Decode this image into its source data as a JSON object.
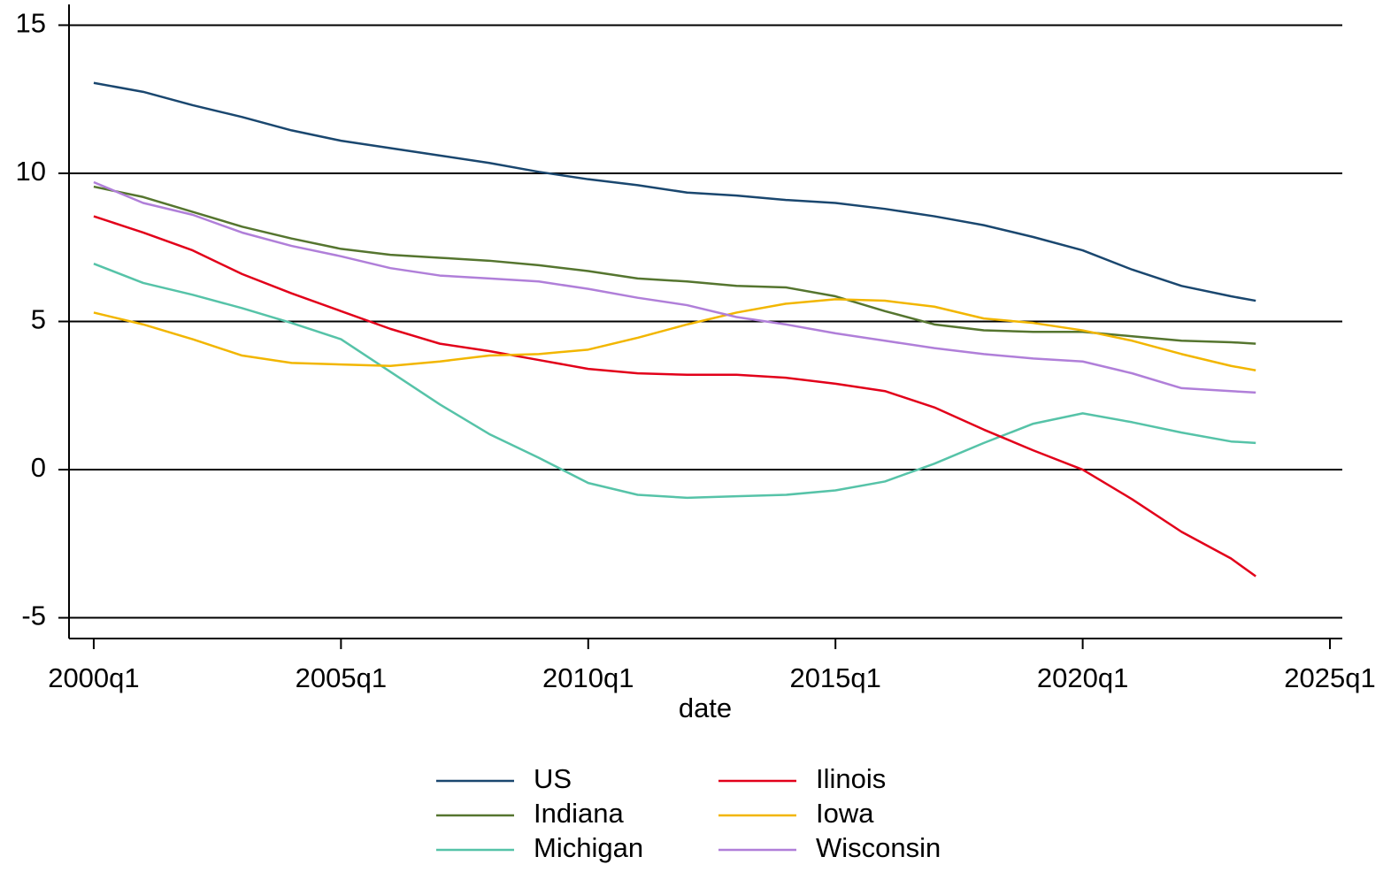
{
  "chart_data": {
    "type": "line",
    "x": [
      "2000q1",
      "2001q1",
      "2002q1",
      "2003q1",
      "2004q1",
      "2005q1",
      "2006q1",
      "2007q1",
      "2008q1",
      "2009q1",
      "2010q1",
      "2011q1",
      "2012q1",
      "2013q1",
      "2014q1",
      "2015q1",
      "2016q1",
      "2017q1",
      "2018q1",
      "2019q1",
      "2020q1",
      "2021q1",
      "2022q1",
      "2023q1",
      "2023q3"
    ],
    "xlabel": "date",
    "xlim": [
      "1999q3",
      "2025q2"
    ],
    "xticks": [
      "2000q1",
      "2005q1",
      "2010q1",
      "2015q1",
      "2020q1",
      "2025q1"
    ],
    "ylim": [
      -5.7,
      15.7
    ],
    "yticks": [
      -5,
      0,
      5,
      10,
      15
    ],
    "grid": true,
    "legend_columns": 2,
    "series": [
      {
        "name": "US",
        "color": "#1a476f",
        "values": [
          13.05,
          12.75,
          12.3,
          11.9,
          11.45,
          11.1,
          10.85,
          10.6,
          10.35,
          10.05,
          9.8,
          9.6,
          9.35,
          9.25,
          9.1,
          9.0,
          8.8,
          8.55,
          8.25,
          7.85,
          7.4,
          6.75,
          6.2,
          5.85,
          5.7
        ]
      },
      {
        "name": "Indiana",
        "color": "#55752f",
        "values": [
          9.55,
          9.2,
          8.7,
          8.2,
          7.8,
          7.45,
          7.25,
          7.15,
          7.05,
          6.9,
          6.7,
          6.45,
          6.35,
          6.2,
          6.15,
          5.85,
          5.35,
          4.9,
          4.7,
          4.65,
          4.65,
          4.5,
          4.35,
          4.3,
          4.25
        ]
      },
      {
        "name": "Michigan",
        "color": "#56c3a8",
        "values": [
          6.95,
          6.3,
          5.9,
          5.45,
          4.95,
          4.4,
          3.3,
          2.2,
          1.2,
          0.4,
          -0.45,
          -0.85,
          -0.95,
          -0.9,
          -0.85,
          -0.7,
          -0.4,
          0.2,
          0.9,
          1.55,
          1.9,
          1.6,
          1.25,
          0.95,
          0.9
        ]
      },
      {
        "name": "Ilinois",
        "color": "#e2001a",
        "values": [
          8.55,
          8.0,
          7.4,
          6.6,
          5.95,
          5.35,
          4.75,
          4.25,
          4.0,
          3.7,
          3.4,
          3.25,
          3.2,
          3.2,
          3.1,
          2.9,
          2.65,
          2.1,
          1.35,
          0.65,
          0.0,
          -1.0,
          -2.1,
          -3.0,
          -3.6
        ]
      },
      {
        "name": "Iowa",
        "color": "#f2b600",
        "values": [
          5.3,
          4.9,
          4.4,
          3.85,
          3.6,
          3.55,
          3.5,
          3.65,
          3.85,
          3.9,
          4.05,
          4.45,
          4.9,
          5.3,
          5.6,
          5.75,
          5.7,
          5.5,
          5.1,
          4.95,
          4.7,
          4.35,
          3.9,
          3.5,
          3.35
        ]
      },
      {
        "name": "Wisconsin",
        "color": "#b07fd9",
        "values": [
          9.7,
          9.0,
          8.6,
          8.0,
          7.55,
          7.2,
          6.8,
          6.55,
          6.45,
          6.35,
          6.1,
          5.8,
          5.55,
          5.15,
          4.9,
          4.6,
          4.35,
          4.1,
          3.9,
          3.75,
          3.65,
          3.25,
          2.75,
          2.65,
          2.6
        ]
      }
    ]
  }
}
